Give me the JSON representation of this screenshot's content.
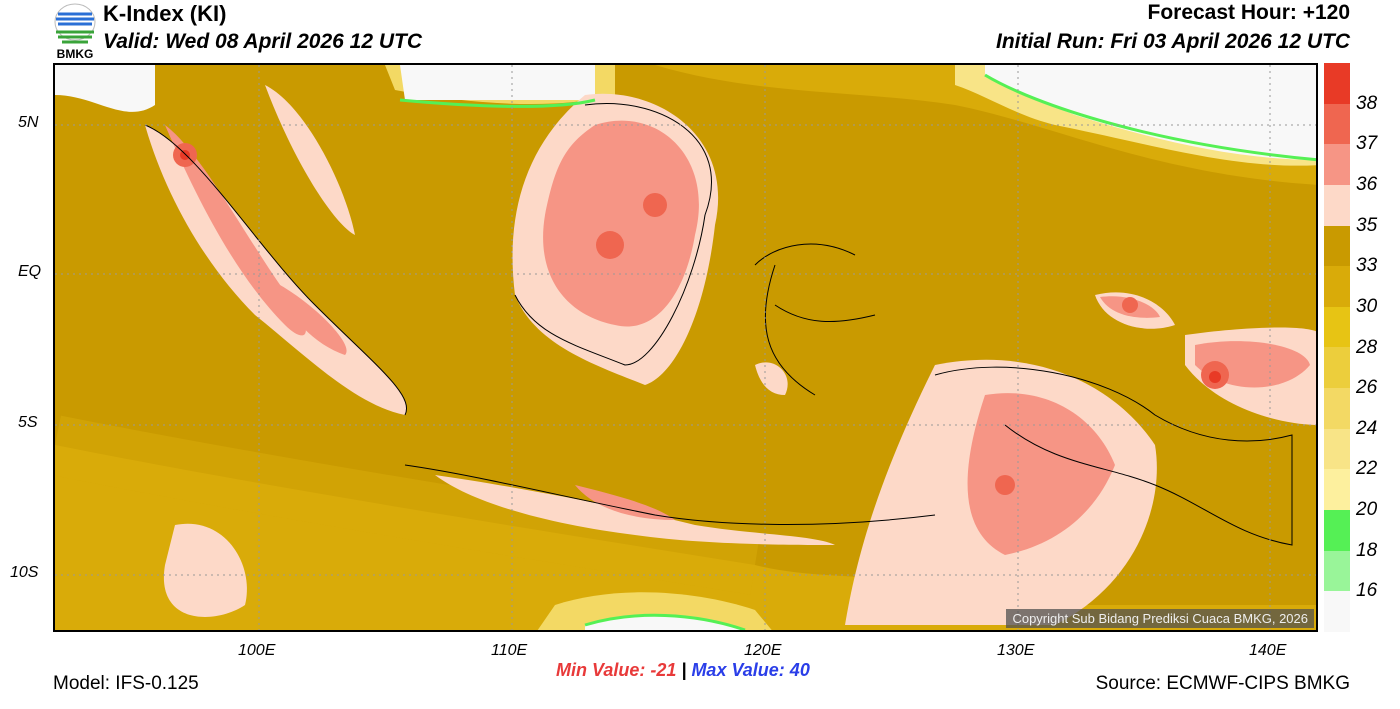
{
  "header": {
    "title": "K-Index (KI)",
    "valid": "Valid: Wed 08 April 2026 12 UTC",
    "forecast_hour": "Forecast Hour: +120",
    "initial_run": "Initial Run: Fri 03 April 2026 12 UTC",
    "logo_text": "BMKG"
  },
  "map": {
    "lat_labels": [
      "5N",
      "EQ",
      "5S",
      "10S"
    ],
    "lon_labels": [
      "100E",
      "110E",
      "120E",
      "130E",
      "140E"
    ],
    "copyright": "Copyright Sub Bidang Prediksi Cuaca BMKG, 2026"
  },
  "colorbar": {
    "labels": [
      "38",
      "37",
      "36",
      "35",
      "33",
      "30",
      "28",
      "26",
      "24",
      "22",
      "20",
      "18",
      "16"
    ],
    "colors": [
      "#e83a26",
      "#ef6650",
      "#f69585",
      "#fdd9c8",
      "#c99a00",
      "#d9ab09",
      "#e7c414",
      "#ecce3c",
      "#f3d964",
      "#f8e487",
      "#fdf09e",
      "#55f055",
      "#99f599",
      "#f8f8f8"
    ]
  },
  "footer": {
    "min_label": "Min Value: -21",
    "separator": "|",
    "max_label": "Max Value:  40",
    "model": "Model: IFS-0.125",
    "source": "Source: ECMWF-CIPS BMKG"
  }
}
